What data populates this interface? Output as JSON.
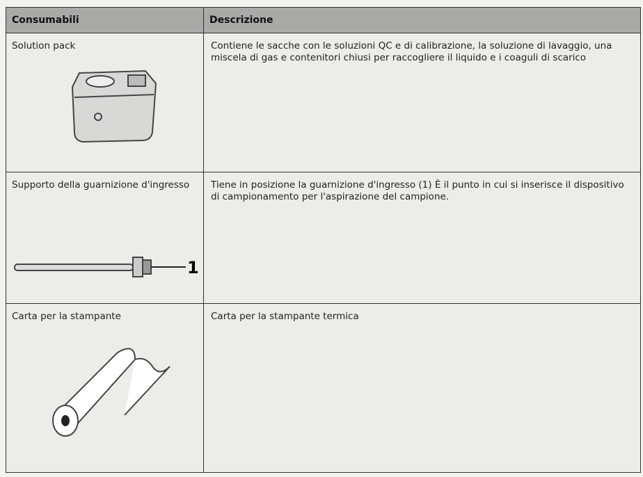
{
  "table": {
    "header": [
      "Consumabili",
      "Descrizione"
    ],
    "rows": [
      {
        "item": "Solution pack",
        "description": "Contiene le sacche con le soluzioni QC e di calibrazione, la soluzione di lavaggio, una miscela di gas e contenitori chiusi per raccogliere il liquido e i coaguli di scarico"
      },
      {
        "item": "Supporto della guarnizione d'ingresso",
        "description": "Tiene in posizione la guarnizione d'ingresso (1) È il punto in cui si inserisce il dispositivo di campionamento per l'aspirazione del campione.",
        "callout": "1"
      },
      {
        "item": "Carta per la stampante",
        "description": "Carta per la stampante termica"
      }
    ]
  }
}
